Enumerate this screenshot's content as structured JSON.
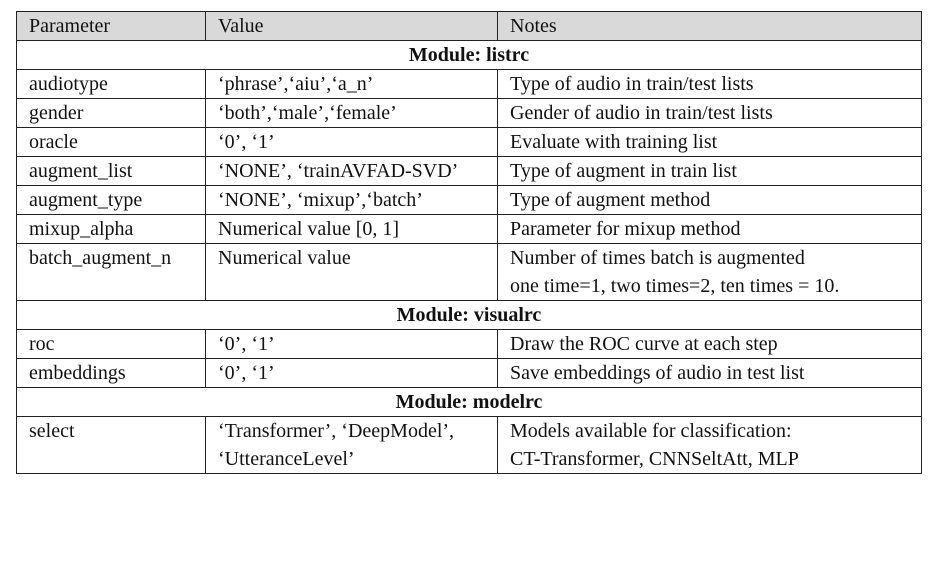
{
  "headers": [
    "Parameter",
    "Value",
    "Notes"
  ],
  "modules": [
    {
      "title": "Module: listrc",
      "rows": [
        {
          "param": "audiotype",
          "value": [
            "‘phrase’,‘aiu’,‘a_n’"
          ],
          "notes": [
            "Type of audio in train/test lists"
          ]
        },
        {
          "param": "gender",
          "value": [
            "‘both’,‘male’,‘female’"
          ],
          "notes": [
            "Gender of audio in train/test lists"
          ]
        },
        {
          "param": "oracle",
          "value": [
            "‘0’, ‘1’"
          ],
          "notes": [
            "Evaluate with training list"
          ]
        },
        {
          "param": "augment_list",
          "value": [
            "‘NONE’, ‘trainAVFAD-SVD’"
          ],
          "notes": [
            "Type of augment in train list"
          ]
        },
        {
          "param": "augment_type",
          "value": [
            "‘NONE’, ‘mixup’,‘batch’"
          ],
          "notes": [
            "Type of augment method"
          ]
        },
        {
          "param": "mixup_alpha",
          "value": [
            "Numerical value [0, 1]"
          ],
          "notes": [
            "Parameter for mixup method"
          ]
        },
        {
          "param": "batch_augment_n",
          "value": [
            "Numerical value"
          ],
          "notes": [
            "Number of times batch is augmented",
            "one time=1, two times=2, ten times = 10."
          ]
        }
      ]
    },
    {
      "title": "Module: visualrc",
      "rows": [
        {
          "param": "roc",
          "value": [
            "‘0’, ‘1’"
          ],
          "notes": [
            "Draw the ROC curve at each step"
          ]
        },
        {
          "param": "embeddings",
          "value": [
            "‘0’, ‘1’"
          ],
          "notes": [
            "Save embeddings of audio in test list"
          ]
        }
      ]
    },
    {
      "title": "Module: modelrc",
      "rows": [
        {
          "param": "select",
          "value": [
            "‘Transformer’, ‘DeepModel’,",
            "‘UtteranceLevel’"
          ],
          "notes": [
            "Models available for classification:",
            "CT-Transformer, CNNSeltAtt, MLP"
          ]
        }
      ]
    }
  ]
}
